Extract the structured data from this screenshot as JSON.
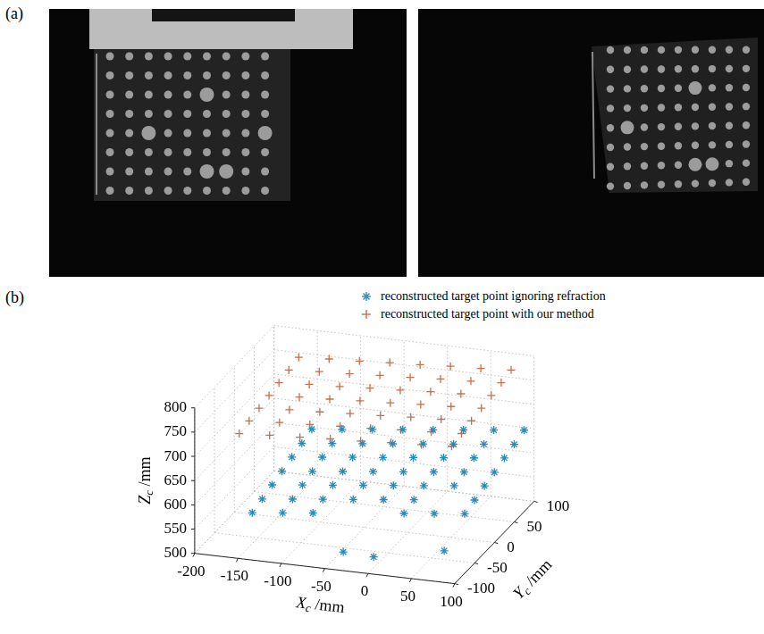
{
  "panel_a": {
    "label": "(a)"
  },
  "chart_data": {
    "type": "scatter3d",
    "label": "(b)",
    "xlabel": "Xc /mm",
    "ylabel": "Yc /mm",
    "zlabel": "Zc /mm",
    "xlim": [
      -200,
      100
    ],
    "xticks": [
      -200,
      -150,
      -100,
      -50,
      0,
      50,
      100
    ],
    "ylim": [
      -100,
      100
    ],
    "yticks": [
      -100,
      -50,
      0,
      50,
      100
    ],
    "zlim": [
      500,
      800
    ],
    "zticks": [
      500,
      550,
      600,
      650,
      700,
      750,
      800
    ],
    "grid": true,
    "legend": "upper right",
    "series": [
      {
        "name": "reconstructed target point ignoring refraction",
        "color": "#2a8bb8",
        "marker": "star",
        "points": [
          [
            -145,
            -75,
            574
          ],
          [
            -110,
            -75,
            581
          ],
          [
            -75,
            -75,
            588
          ],
          [
            -40,
            -75,
            515
          ],
          [
            -5,
            -75,
            512
          ],
          [
            30,
            -75,
            609
          ],
          [
            65,
            -75,
            616
          ],
          [
            100,
            -75,
            623
          ],
          [
            -145,
            -50,
            581
          ],
          [
            -110,
            -50,
            588
          ],
          [
            -75,
            -50,
            595
          ],
          [
            -40,
            -50,
            602
          ],
          [
            -5,
            -50,
            609
          ],
          [
            30,
            -50,
            616
          ],
          [
            65,
            -50,
            518
          ],
          [
            100,
            -50,
            630
          ],
          [
            -145,
            -25,
            589
          ],
          [
            -110,
            -25,
            596
          ],
          [
            -75,
            -25,
            603
          ],
          [
            -40,
            -25,
            610
          ],
          [
            -5,
            -25,
            617
          ],
          [
            30,
            -25,
            624
          ],
          [
            65,
            -25,
            631
          ],
          [
            100,
            -25,
            638
          ],
          [
            -145,
            0,
            596
          ],
          [
            -110,
            0,
            603
          ],
          [
            -75,
            0,
            610
          ],
          [
            -40,
            0,
            617
          ],
          [
            -5,
            0,
            624
          ],
          [
            30,
            0,
            631
          ],
          [
            65,
            0,
            638
          ],
          [
            100,
            0,
            645
          ],
          [
            -145,
            25,
            604
          ],
          [
            -110,
            25,
            611
          ],
          [
            -75,
            25,
            618
          ],
          [
            -40,
            25,
            625
          ],
          [
            -5,
            25,
            632
          ],
          [
            30,
            25,
            639
          ],
          [
            65,
            25,
            646
          ],
          [
            100,
            25,
            653
          ],
          [
            -145,
            50,
            611
          ],
          [
            -110,
            50,
            618
          ],
          [
            -75,
            50,
            625
          ],
          [
            -40,
            50,
            632
          ],
          [
            -5,
            50,
            639
          ],
          [
            30,
            50,
            646
          ],
          [
            65,
            50,
            653
          ],
          [
            100,
            50,
            660
          ],
          [
            -145,
            75,
            619
          ],
          [
            -110,
            75,
            626
          ],
          [
            -75,
            75,
            633
          ],
          [
            -40,
            75,
            640
          ],
          [
            -5,
            75,
            647
          ],
          [
            30,
            75,
            654
          ],
          [
            65,
            75,
            661
          ],
          [
            100,
            75,
            668
          ]
        ]
      },
      {
        "name": "reconstructed target point with our method",
        "color": "#c4704c",
        "marker": "cross",
        "points": [
          [
            -160,
            -75,
            734
          ],
          [
            -125,
            -75,
            738
          ],
          [
            -90,
            -75,
            741
          ],
          [
            -55,
            -75,
            745
          ],
          [
            -20,
            -75,
            748
          ],
          [
            15,
            -75,
            752
          ],
          [
            50,
            -75,
            755
          ],
          [
            85,
            -75,
            759
          ],
          [
            -160,
            -50,
            739
          ],
          [
            -125,
            -50,
            743
          ],
          [
            -90,
            -50,
            746
          ],
          [
            -55,
            -50,
            750
          ],
          [
            -20,
            -50,
            753
          ],
          [
            15,
            -50,
            757
          ],
          [
            50,
            -50,
            760
          ],
          [
            85,
            -50,
            764
          ],
          [
            -160,
            -25,
            744
          ],
          [
            -125,
            -25,
            748
          ],
          [
            -90,
            -25,
            751
          ],
          [
            -55,
            -25,
            755
          ],
          [
            -20,
            -25,
            758
          ],
          [
            15,
            -25,
            762
          ],
          [
            50,
            -25,
            765
          ],
          [
            85,
            -25,
            769
          ],
          [
            -160,
            0,
            749
          ],
          [
            -125,
            0,
            753
          ],
          [
            -90,
            0,
            756
          ],
          [
            -55,
            0,
            760
          ],
          [
            -20,
            0,
            763
          ],
          [
            15,
            0,
            767
          ],
          [
            50,
            0,
            770
          ],
          [
            85,
            0,
            774
          ],
          [
            -160,
            25,
            754
          ],
          [
            -125,
            25,
            758
          ],
          [
            -90,
            25,
            761
          ],
          [
            -55,
            25,
            765
          ],
          [
            -20,
            25,
            768
          ],
          [
            15,
            25,
            772
          ],
          [
            50,
            25,
            775
          ],
          [
            85,
            25,
            779
          ],
          [
            -160,
            50,
            759
          ],
          [
            -125,
            50,
            763
          ],
          [
            -90,
            50,
            766
          ],
          [
            -55,
            50,
            770
          ],
          [
            -20,
            50,
            773
          ],
          [
            15,
            50,
            777
          ],
          [
            50,
            50,
            780
          ],
          [
            85,
            50,
            784
          ],
          [
            -160,
            75,
            764
          ],
          [
            -125,
            75,
            768
          ],
          [
            -90,
            75,
            771
          ],
          [
            -55,
            75,
            775
          ],
          [
            -20,
            75,
            778
          ],
          [
            15,
            75,
            782
          ],
          [
            50,
            75,
            785
          ],
          [
            85,
            75,
            789
          ]
        ]
      }
    ]
  }
}
